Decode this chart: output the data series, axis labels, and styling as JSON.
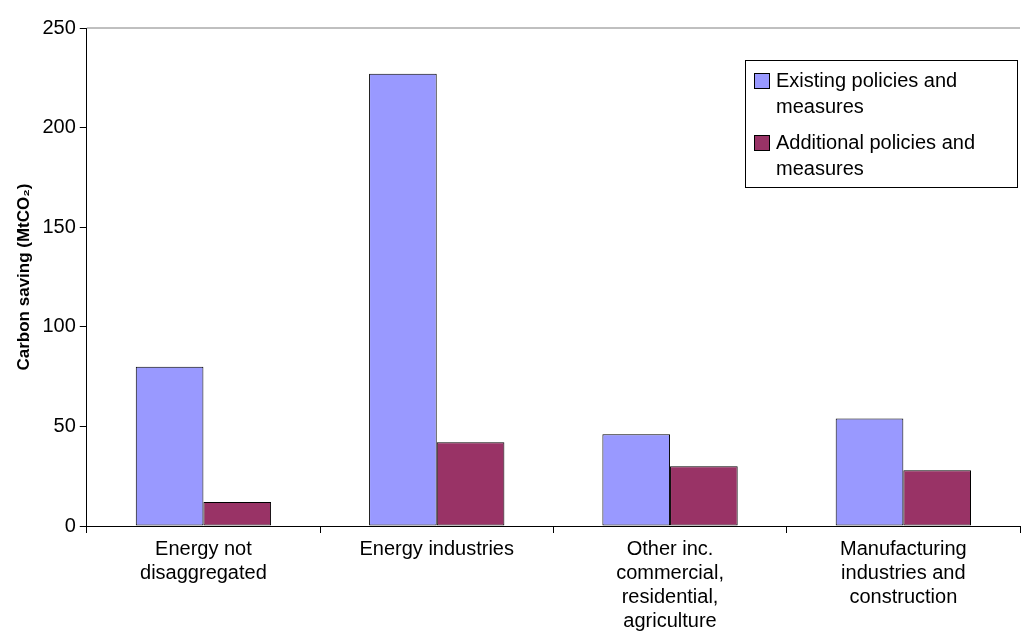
{
  "chart_data": {
    "type": "bar",
    "ylabel": "Carbon saving (MtCO₂)",
    "categories": [
      "Energy not disaggregated",
      "Energy industries",
      "Other inc. commercial, residential, agriculture",
      "Manufacturing industries and construction"
    ],
    "series": [
      {
        "name": "Existing policies and measures",
        "color": "#9999ff",
        "values": [
          80,
          227,
          46,
          54
        ]
      },
      {
        "name": "Additional policies and measures",
        "color": "#993366",
        "values": [
          12,
          42,
          30,
          28
        ]
      }
    ],
    "ylim": [
      0,
      250
    ],
    "yticks": [
      0,
      50,
      100,
      150,
      200,
      250
    ],
    "legend": "top right"
  }
}
